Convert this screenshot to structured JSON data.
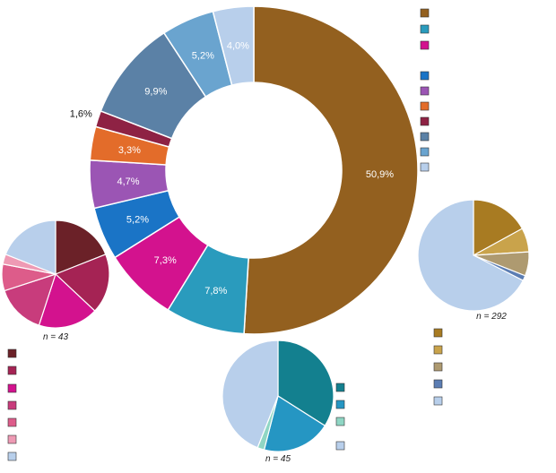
{
  "chart_data": [
    {
      "type": "pie",
      "variant": "donut",
      "segments": [
        {
          "value": 50.9,
          "label": "50,9%",
          "color": "#93601f"
        },
        {
          "value": 7.8,
          "label": "7,8%",
          "color": "#2a9bbd"
        },
        {
          "value": 7.3,
          "label": "7,3%",
          "color": "#d3128e"
        },
        {
          "value": 5.2,
          "label": "5,2%",
          "color": "#1a74c6"
        },
        {
          "value": 4.7,
          "label": "4,7%",
          "color": "#9b55b4"
        },
        {
          "value": 3.3,
          "label": "3,3%",
          "color": "#e36c2a"
        },
        {
          "value": 1.6,
          "label": "1,6%",
          "color": "#8e2244"
        },
        {
          "value": 9.9,
          "label": "9,9%",
          "color": "#5b81a6"
        },
        {
          "value": 5.2,
          "label": "5,2%",
          "color": "#6aa4cf"
        },
        {
          "value": 4.0,
          "label": "4,0%",
          "color": "#b8cfeb"
        }
      ],
      "legend_colors": [
        "#93601f",
        "#2a9bbd",
        "#d3128e",
        "#1a74c6",
        "#9b55b4",
        "#e36c2a",
        "#8e2244",
        "#5b81a6",
        "#6aa4cf",
        "#b8cfeb"
      ],
      "legend_placement": "top-right"
    },
    {
      "type": "pie",
      "n": "n = 43",
      "slices": [
        {
          "value": 19,
          "color": "#6b2128"
        },
        {
          "value": 18,
          "color": "#a52354"
        },
        {
          "value": 18,
          "color": "#d3128e"
        },
        {
          "value": 15,
          "color": "#c83c7c"
        },
        {
          "value": 8,
          "color": "#dd5c8a"
        },
        {
          "value": 3,
          "color": "#ee9ab4"
        },
        {
          "value": 19,
          "color": "#b8cfeb"
        }
      ],
      "legend_colors": [
        "#6b2128",
        "#a52354",
        "#d3128e",
        "#c83c7c",
        "#dd5c8a",
        "#ee9ab4",
        "#b8cfeb"
      ],
      "legend_placement": "bottom-left"
    },
    {
      "type": "pie",
      "n": "n = 45",
      "slices": [
        {
          "value": 34,
          "color": "#13808f"
        },
        {
          "value": 20,
          "color": "#2596c3"
        },
        {
          "value": 2,
          "color": "#8fd6c4"
        },
        {
          "value": 44,
          "color": "#b8cfeb"
        }
      ],
      "legend_colors": [
        "#13808f",
        "#2596c3",
        "#8fd6c4",
        "#b8cfeb"
      ],
      "legend_placement": "right"
    },
    {
      "type": "pie",
      "n": "n = 292",
      "slices": [
        {
          "value": 17,
          "color": "#a87b22"
        },
        {
          "value": 7,
          "color": "#c9a34b"
        },
        {
          "value": 7,
          "color": "#ae9a70"
        },
        {
          "value": 1.5,
          "color": "#5b7db3"
        },
        {
          "value": 67.5,
          "color": "#b8cfeb"
        }
      ],
      "legend_colors": [
        "#a87b22",
        "#c9a34b",
        "#ae9a70",
        "#5b7db3",
        "#b8cfeb"
      ],
      "legend_placement": "bottom"
    }
  ]
}
